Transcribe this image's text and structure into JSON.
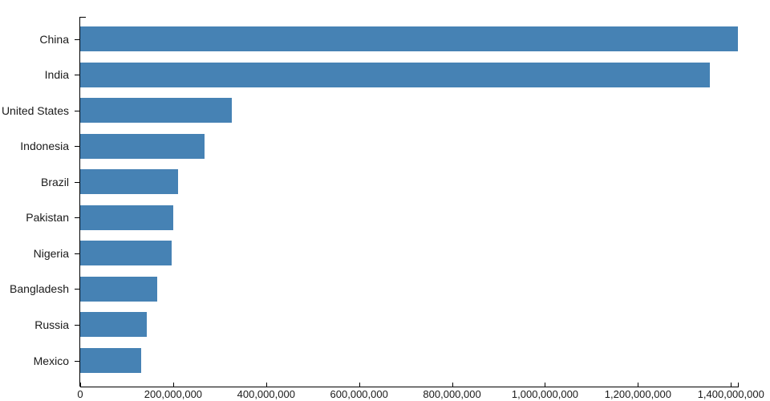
{
  "chart_data": {
    "type": "bar",
    "orientation": "horizontal",
    "title": "",
    "xlabel": "",
    "ylabel": "",
    "categories": [
      "China",
      "India",
      "United States",
      "Indonesia",
      "Brazil",
      "Pakistan",
      "Nigeria",
      "Bangladesh",
      "Russia",
      "Mexico"
    ],
    "values": [
      1415045928,
      1354051854,
      326766748,
      266794980,
      210867954,
      200813818,
      195875237,
      166368149,
      143964709,
      130759074
    ],
    "xlim": [
      0,
      1415045928
    ],
    "x_tick_values": [
      0,
      200000000,
      400000000,
      600000000,
      800000000,
      1000000000,
      1200000000,
      1400000000
    ],
    "x_tick_labels": [
      "0",
      "200,000,000",
      "400,000,000",
      "600,000,000",
      "800,000,000",
      "1,000,000,000",
      "1,200,000,000",
      "1,400,000,000"
    ],
    "grid": false,
    "legend": false,
    "bar_color": "#4682b4",
    "axis_color": "#000000",
    "text_color": "#1a1a1a"
  }
}
